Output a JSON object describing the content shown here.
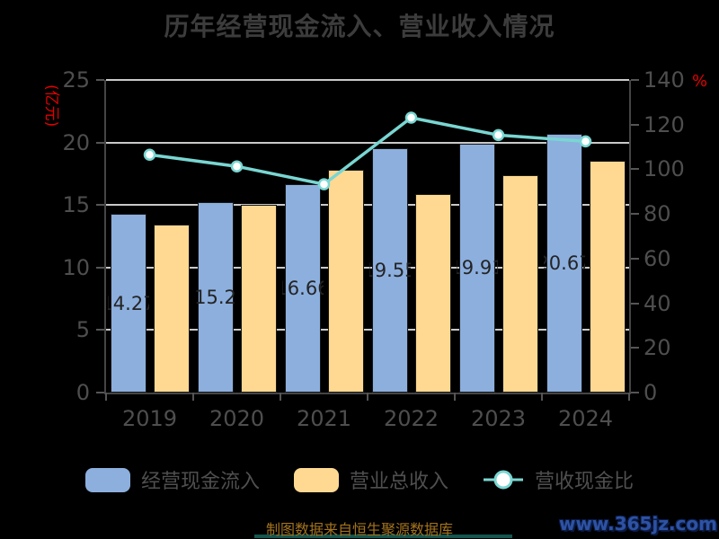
{
  "title": "历年经营现金流入、营业收入情况",
  "axes": {
    "left_unit": "(亿元)",
    "right_unit": "%",
    "left_ticks": [
      0,
      5,
      10,
      15,
      20,
      25
    ],
    "right_ticks": [
      0,
      20,
      40,
      60,
      80,
      100,
      120,
      140
    ],
    "left_max": 25,
    "right_max": 140
  },
  "chart_data": {
    "type": "bar",
    "categories": [
      "2019",
      "2020",
      "2021",
      "2022",
      "2023",
      "2024"
    ],
    "series": [
      {
        "id": "cash-inflow",
        "name": "经营现金流入",
        "type": "bar",
        "axis": "left",
        "color": "#8cafde",
        "values": [
          14.27,
          15.2,
          16.66,
          19.55,
          19.91,
          20.67
        ],
        "labels": [
          "14.27",
          "15.2",
          "16.66",
          "19.55",
          "19.91",
          "20.67"
        ]
      },
      {
        "id": "total-revenue",
        "name": "营业总收入",
        "type": "bar",
        "axis": "left",
        "color": "#ffd991",
        "values": [
          13.4,
          15.0,
          17.8,
          15.9,
          17.4,
          18.5
        ]
      },
      {
        "id": "cash-ratio",
        "name": "营收现金比",
        "type": "line",
        "axis": "right",
        "color": "#79d6d2",
        "values": [
          106.5,
          101.3,
          93.3,
          123.1,
          115.3,
          112.5
        ]
      }
    ],
    "title": "历年经营现金流入、营业收入情况",
    "xlabel": "",
    "ylabel_left": "(亿元)",
    "ylabel_right": "%",
    "ylim_left": [
      0,
      25
    ],
    "ylim_right": [
      0,
      140
    ],
    "grid": true,
    "legend_position": "bottom"
  },
  "footer": {
    "source": "制图数据来自恒生聚源数据库",
    "watermark": "www.365jz.com"
  }
}
